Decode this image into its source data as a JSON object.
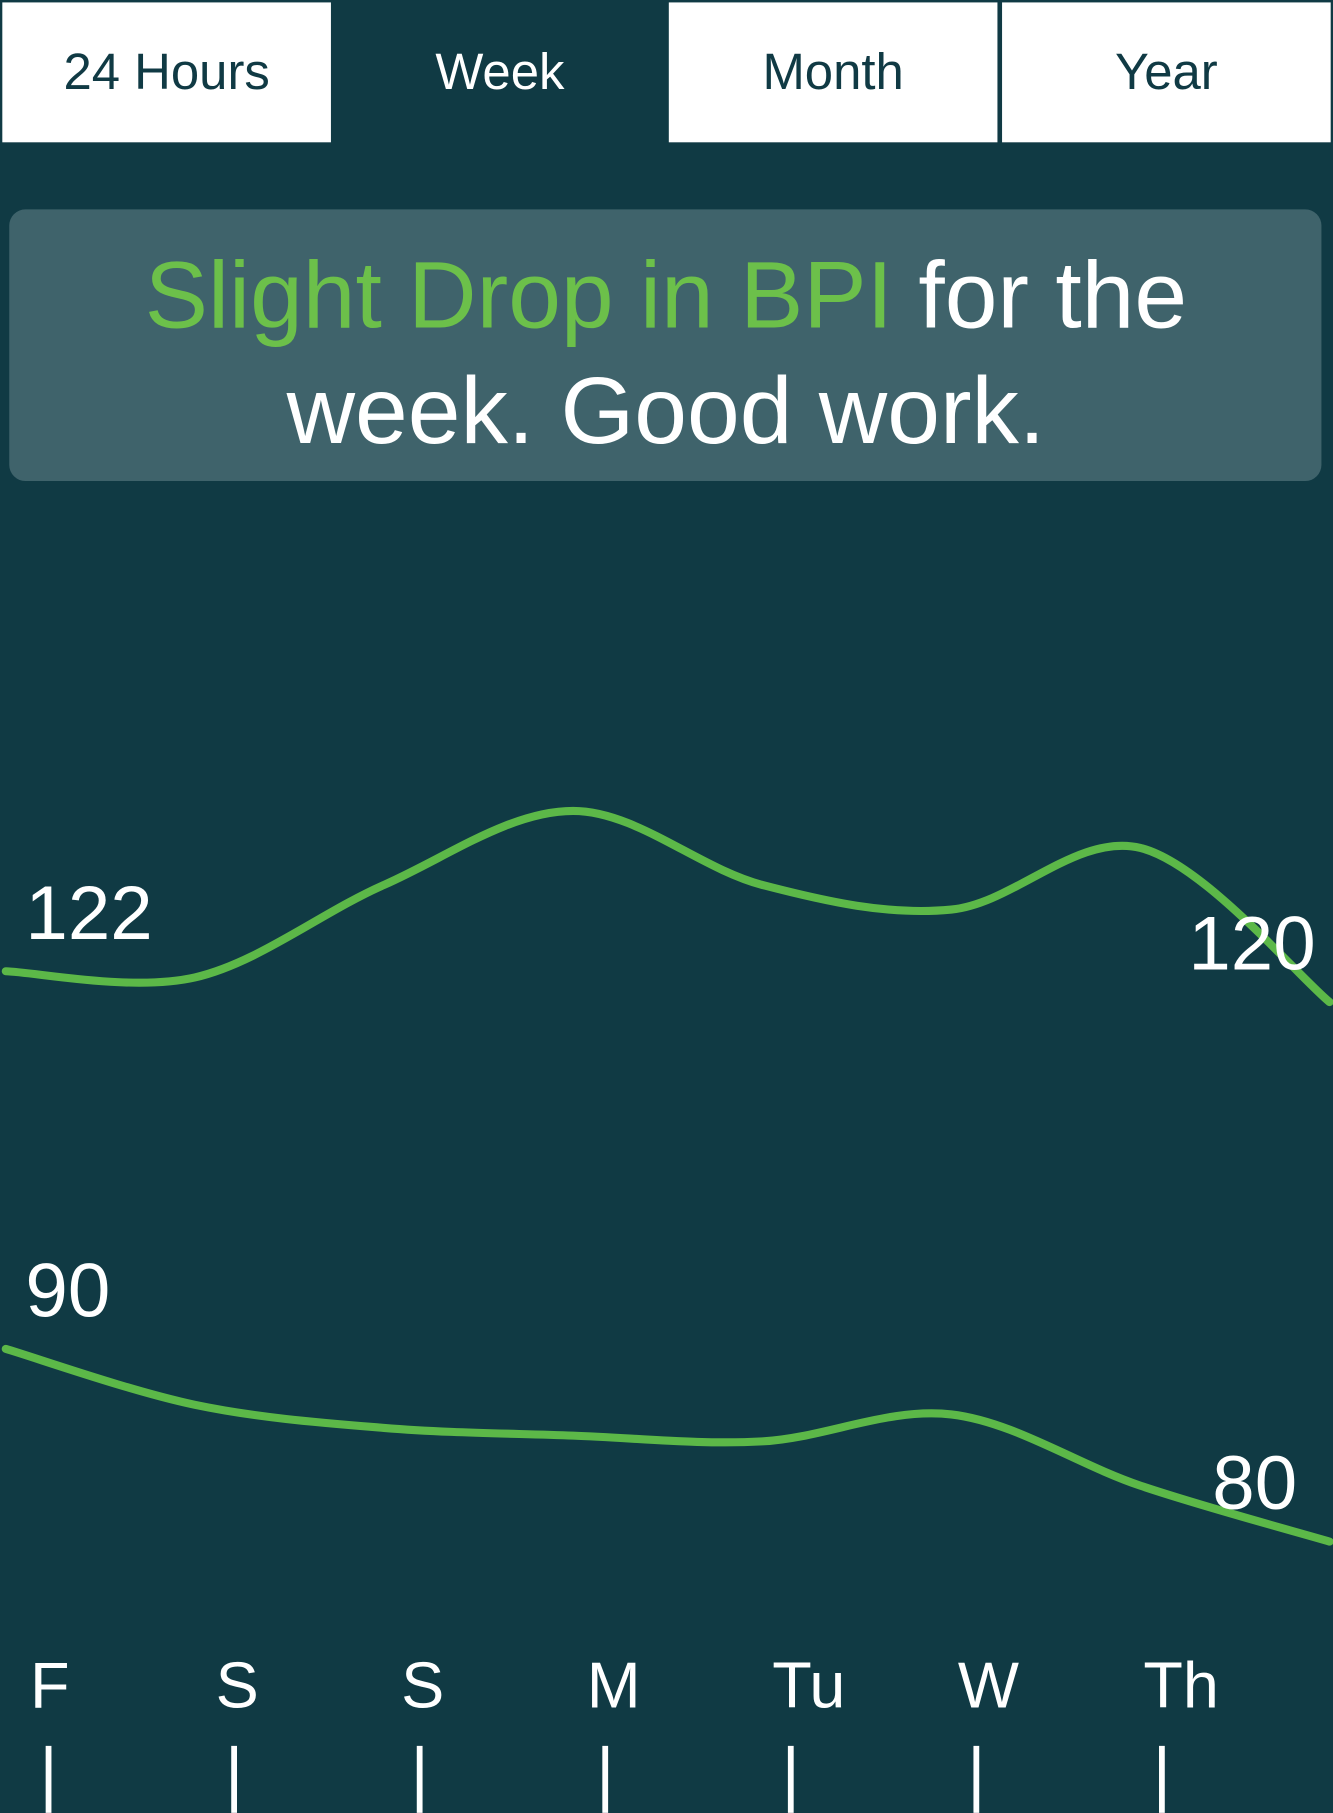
{
  "tabs": {
    "items": [
      "24 Hours",
      "Week",
      "Month",
      "Year"
    ],
    "selected": 1
  },
  "message": {
    "highlight": "Slight Drop in BPI",
    "rest": "for the",
    "line2": "week. Good work."
  },
  "chart_data": {
    "type": "line",
    "categories": [
      "F",
      "S",
      "S",
      "M",
      "Tu",
      "W",
      "Th",
      null
    ],
    "series": [
      {
        "color": "#5cb848",
        "ylim": [
          110,
          140
        ],
        "values": [
          122,
          121.6,
          127.6,
          132.4,
          127.6,
          126,
          130,
          120
        ]
      },
      {
        "color": "#5cb848",
        "ylim": [
          70,
          100
        ],
        "values": [
          90,
          87.1,
          85.9,
          85.5,
          85.2,
          86.6,
          82.9,
          80
        ]
      }
    ]
  }
}
